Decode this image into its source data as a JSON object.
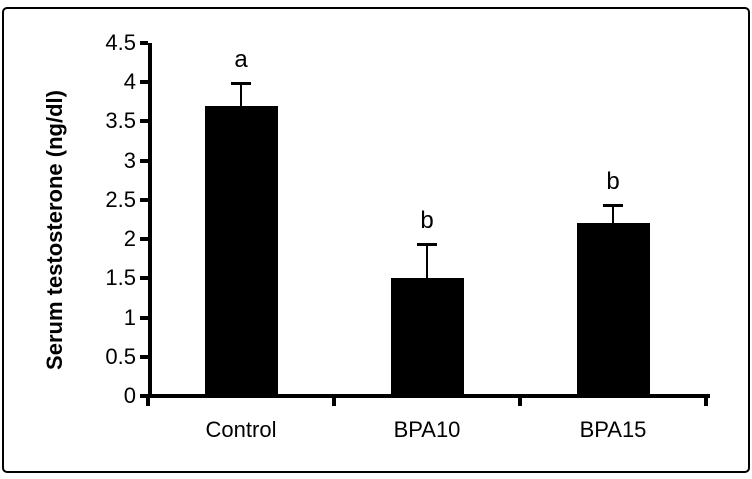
{
  "figure": {
    "border_color": "#000000",
    "background_color": "#ffffff"
  },
  "chart_data": {
    "type": "bar",
    "title": "",
    "categories": [
      "Control",
      "BPA10",
      "BPA15"
    ],
    "values": [
      3.7,
      1.5,
      2.2
    ],
    "errors_upper": [
      0.3,
      0.45,
      0.25
    ],
    "sig_letters": [
      "a",
      "b",
      "b"
    ],
    "xlabel": "",
    "ylabel": "Serum testosterone (ng/dl)",
    "ylim": [
      0,
      4.5
    ],
    "ytick_step": 0.5,
    "ytick_labels": [
      "0",
      "0.5",
      "1",
      "1.5",
      "2",
      "2.5",
      "3",
      "3.5",
      "4",
      "4.5"
    ],
    "bar_color": "#000000",
    "axis_color": "#000000",
    "error_bar_style": "upper-whisker-with-cap",
    "grid": false,
    "legend": null
  }
}
